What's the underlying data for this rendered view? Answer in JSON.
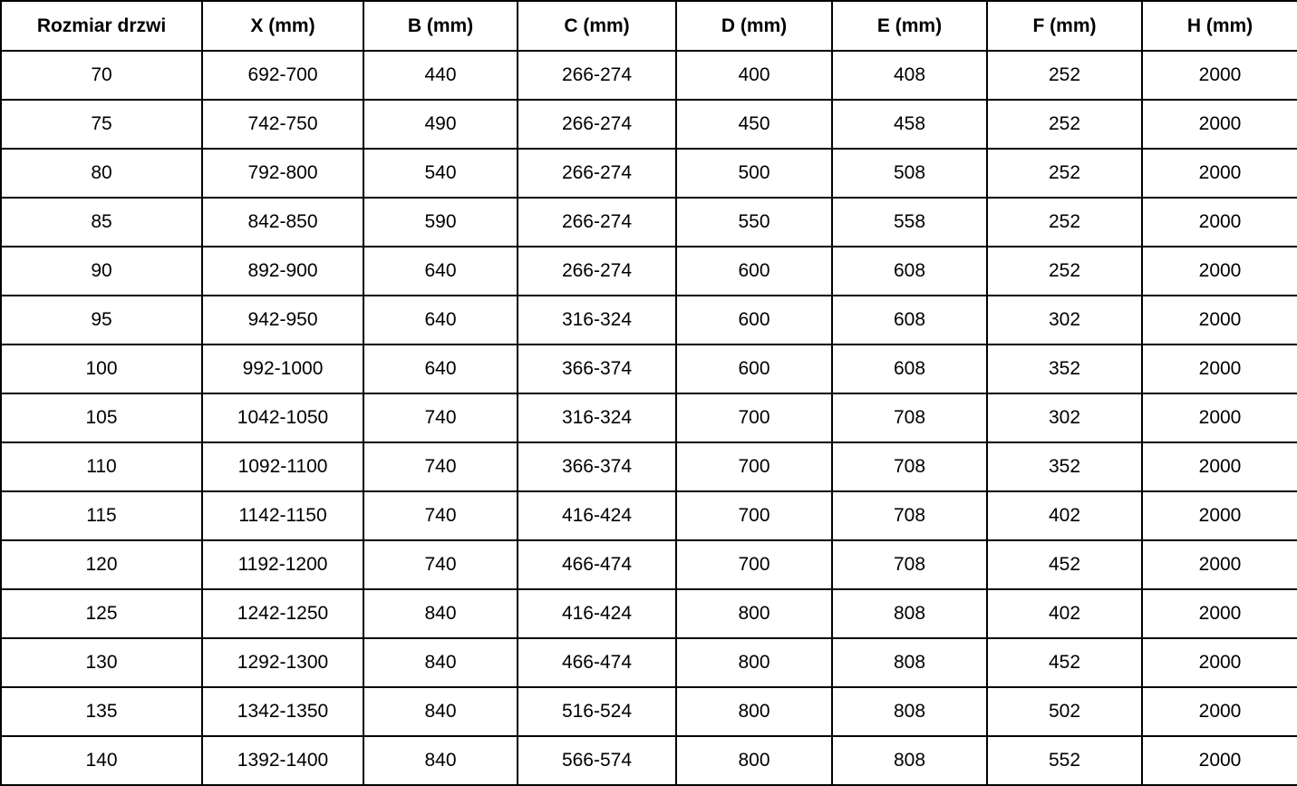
{
  "table": {
    "name": "door-size-specification-table",
    "border_color": "#000000",
    "background_color": "#ffffff",
    "text_color": "#000000",
    "columns": [
      "Rozmiar drzwi",
      "X (mm)",
      "B (mm)",
      "C (mm)",
      "D (mm)",
      "E (mm)",
      "F (mm)",
      "H (mm)"
    ],
    "rows": [
      [
        "70",
        "692-700",
        "440",
        "266-274",
        "400",
        "408",
        "252",
        "2000"
      ],
      [
        "75",
        "742-750",
        "490",
        "266-274",
        "450",
        "458",
        "252",
        "2000"
      ],
      [
        "80",
        "792-800",
        "540",
        "266-274",
        "500",
        "508",
        "252",
        "2000"
      ],
      [
        "85",
        "842-850",
        "590",
        "266-274",
        "550",
        "558",
        "252",
        "2000"
      ],
      [
        "90",
        "892-900",
        "640",
        "266-274",
        "600",
        "608",
        "252",
        "2000"
      ],
      [
        "95",
        "942-950",
        "640",
        "316-324",
        "600",
        "608",
        "302",
        "2000"
      ],
      [
        "100",
        "992-1000",
        "640",
        "366-374",
        "600",
        "608",
        "352",
        "2000"
      ],
      [
        "105",
        "1042-1050",
        "740",
        "316-324",
        "700",
        "708",
        "302",
        "2000"
      ],
      [
        "110",
        "1092-1100",
        "740",
        "366-374",
        "700",
        "708",
        "352",
        "2000"
      ],
      [
        "115",
        "1142-1150",
        "740",
        "416-424",
        "700",
        "708",
        "402",
        "2000"
      ],
      [
        "120",
        "1192-1200",
        "740",
        "466-474",
        "700",
        "708",
        "452",
        "2000"
      ],
      [
        "125",
        "1242-1250",
        "840",
        "416-424",
        "800",
        "808",
        "402",
        "2000"
      ],
      [
        "130",
        "1292-1300",
        "840",
        "466-474",
        "800",
        "808",
        "452",
        "2000"
      ],
      [
        "135",
        "1342-1350",
        "840",
        "516-524",
        "800",
        "808",
        "502",
        "2000"
      ],
      [
        "140",
        "1392-1400",
        "840",
        "566-574",
        "800",
        "808",
        "552",
        "2000"
      ]
    ]
  }
}
